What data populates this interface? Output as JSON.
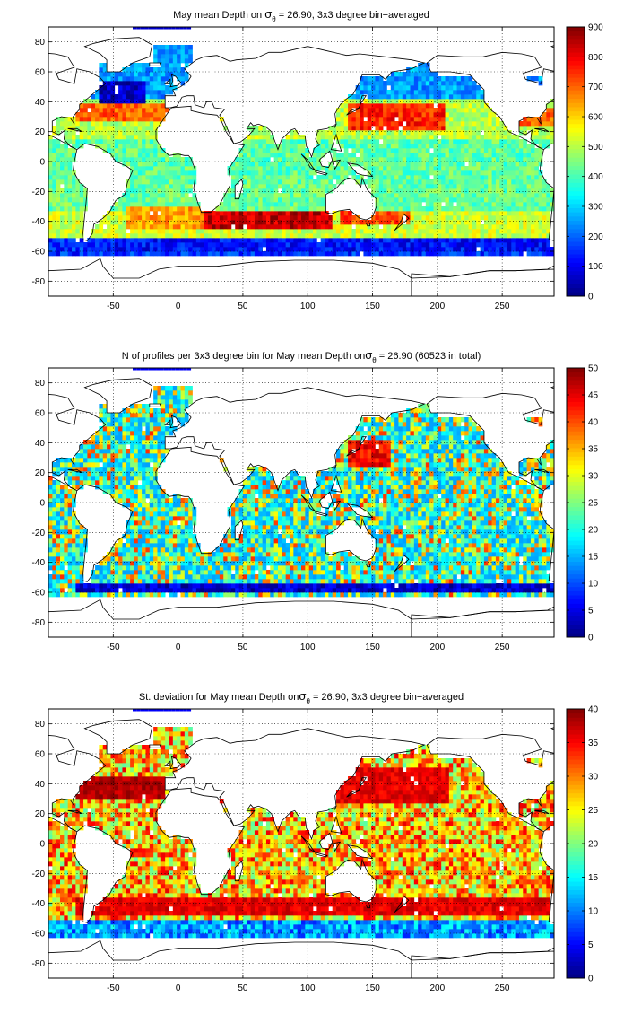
{
  "figure": {
    "panels": [
      {
        "title_parts": [
          "May mean Depth on ",
          "σ",
          "θ",
          " = 26.90, 3x3 degree bin−averaged"
        ],
        "colorbar": {
          "min": 0,
          "max": 900,
          "ticks": [
            0,
            100,
            200,
            300,
            400,
            500,
            600,
            700,
            800,
            900
          ]
        }
      },
      {
        "title_parts": [
          "N of profiles per 3x3 degree bin for May mean Depth on",
          "σ",
          "θ",
          " = 26.90 (60523 in total)"
        ],
        "colorbar": {
          "min": 0,
          "max": 50,
          "ticks": [
            0,
            5,
            10,
            15,
            20,
            25,
            30,
            35,
            40,
            45,
            50
          ]
        }
      },
      {
        "title_parts": [
          "St. deviation for May mean Depth on",
          "σ",
          "θ",
          " = 26.90, 3x3 degree bin−averaged"
        ],
        "colorbar": {
          "min": 0,
          "max": 40,
          "ticks": [
            0,
            5,
            10,
            15,
            20,
            25,
            30,
            35,
            40
          ]
        }
      }
    ]
  },
  "chart_data": [
    {
      "type": "heatmap",
      "title": "May mean Depth on σθ = 26.90, 3x3 degree bin−averaged",
      "xlim": [
        -100,
        290
      ],
      "ylim": [
        -90,
        90
      ],
      "xticks": [
        -50,
        0,
        50,
        100,
        150,
        200,
        250
      ],
      "yticks": [
        -80,
        -60,
        -40,
        -20,
        0,
        20,
        40,
        60,
        80
      ],
      "grid": true,
      "colormap": "jet",
      "clim": [
        0,
        900
      ],
      "regions": [
        {
          "lon": [
            -80,
            0
          ],
          "lat": [
            28,
            40
          ],
          "value": 700
        },
        {
          "lon": [
            -60,
            -25
          ],
          "lat": [
            36,
            55
          ],
          "value": 60
        },
        {
          "lon": [
            20,
            120
          ],
          "lat": [
            -45,
            -33
          ],
          "value": 840
        },
        {
          "lon": [
            125,
            180
          ],
          "lat": [
            -42,
            -33
          ],
          "value": 720
        },
        {
          "lon": [
            130,
            205
          ],
          "lat": [
            22,
            40
          ],
          "value": 760
        },
        {
          "lon": [
            -60,
            290
          ],
          "lat": [
            -60,
            -52
          ],
          "value": 120
        },
        {
          "lon": [
            -40,
            20
          ],
          "lat": [
            -45,
            -30
          ],
          "value": 640
        },
        {
          "lon": [
            250,
            290
          ],
          "lat": [
            24,
            36
          ],
          "value": 700
        }
      ]
    },
    {
      "type": "heatmap",
      "title": "N of profiles per 3x3 degree bin for May mean Depth on σθ = 26.90 (60523 in total)",
      "xlim": [
        -100,
        290
      ],
      "ylim": [
        -90,
        90
      ],
      "xticks": [
        -50,
        0,
        50,
        100,
        150,
        200,
        250
      ],
      "yticks": [
        -80,
        -60,
        -40,
        -20,
        0,
        20,
        40,
        60,
        80
      ],
      "grid": true,
      "colormap": "jet",
      "clim": [
        0,
        50
      ],
      "total_profiles": 60523,
      "regions": [
        {
          "lon": [
            130,
            165
          ],
          "lat": [
            24,
            42
          ],
          "value": 48
        },
        {
          "lon": [
            -80,
            290
          ],
          "lat": [
            -60,
            -55
          ],
          "value": 8
        }
      ]
    },
    {
      "type": "heatmap",
      "title": "St. deviation for May mean Depth on σθ = 26.90, 3x3 degree bin−averaged",
      "xlim": [
        -100,
        290
      ],
      "ylim": [
        -90,
        90
      ],
      "xticks": [
        -50,
        0,
        50,
        100,
        150,
        200,
        250
      ],
      "yticks": [
        -80,
        -60,
        -40,
        -20,
        0,
        20,
        40,
        60,
        80
      ],
      "grid": true,
      "colormap": "jet",
      "clim": [
        0,
        40
      ],
      "regions": [
        {
          "lon": [
            -80,
            -10
          ],
          "lat": [
            30,
            44
          ],
          "value": 40
        },
        {
          "lon": [
            -80,
            290
          ],
          "lat": [
            -48,
            -36
          ],
          "value": 38
        },
        {
          "lon": [
            120,
            210
          ],
          "lat": [
            28,
            50
          ],
          "value": 38
        },
        {
          "lon": [
            -50,
            -20
          ],
          "lat": [
            -8,
            -4
          ],
          "value": 36
        }
      ]
    }
  ]
}
